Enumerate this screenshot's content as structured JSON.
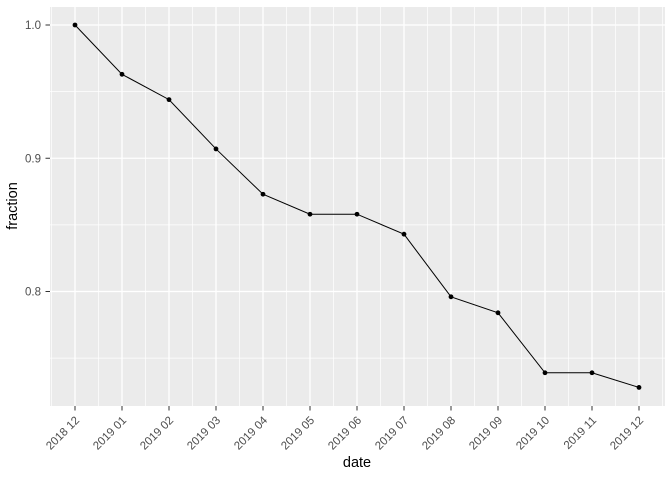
{
  "chart_data": {
    "type": "line",
    "title": "",
    "xlabel": "date",
    "ylabel": "fraction",
    "categories": [
      "2018 12",
      "2019 01",
      "2019 02",
      "2019 03",
      "2019 04",
      "2019 05",
      "2019 06",
      "2019 07",
      "2019 08",
      "2019 09",
      "2019 10",
      "2019 11",
      "2019 12"
    ],
    "series": [
      {
        "name": "fraction",
        "values": [
          1.0,
          0.963,
          0.944,
          0.907,
          0.873,
          0.858,
          0.858,
          0.843,
          0.796,
          0.784,
          0.739,
          0.739,
          0.728
        ]
      }
    ],
    "y_ticks": [
      1.0,
      0.9,
      0.8
    ],
    "y_tick_labels": [
      "1.0",
      "0.9",
      "0.8"
    ],
    "y_minor_ticks": [
      0.95,
      0.85,
      0.75
    ],
    "ylim": [
      0.714,
      1.014
    ],
    "x_tick_rotation": -45,
    "grid": "major-and-minor",
    "legend_position": "none",
    "marker": "point",
    "theme": {
      "panel_background": "#EBEBEB",
      "grid_color": "#FFFFFF",
      "line_color": "#000000",
      "point_color": "#000000",
      "tick_mark_color": "#333333",
      "tick_label_color": "#4D4D4D",
      "axis_title_color": "#000000",
      "figure_background": "#FFFFFF"
    }
  }
}
